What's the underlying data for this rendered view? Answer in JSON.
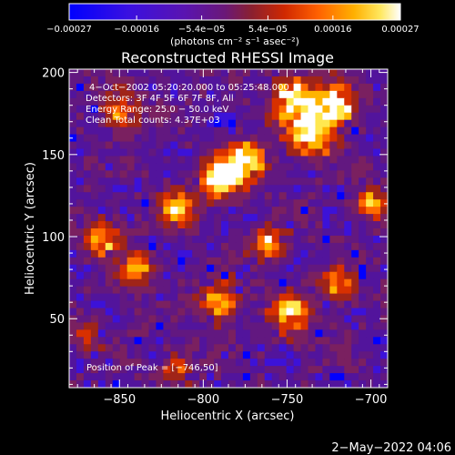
{
  "chart_data": {
    "type": "heatmap",
    "title": "Reconstructed RHESSI Image",
    "xlabel": "Heliocentric X (arcsec)",
    "ylabel": "Heliocentric Y (arcsec)",
    "xlim": [
      -880,
      -690
    ],
    "ylim": [
      8,
      202
    ],
    "x_ticks": [
      -850,
      -800,
      -750,
      -700
    ],
    "x_tick_labels": [
      "−850",
      "−800",
      "−750",
      "−700"
    ],
    "y_ticks": [
      50,
      100,
      150,
      200
    ],
    "y_tick_labels": [
      "50",
      "100",
      "150",
      "200"
    ],
    "colorbar": {
      "range": [
        -0.00027,
        0.00027
      ],
      "ticks": [
        -0.00027,
        -0.00016,
        -5.4e-05,
        5.4e-05,
        0.00016,
        0.00027
      ],
      "tick_labels": [
        "−0.00027",
        "−0.00016",
        "−5.4e−05",
        "5.4e−05",
        "0.00016",
        "0.00027"
      ],
      "unit_label": "(photons cm⁻² s⁻¹ asec⁻²)",
      "colormap": [
        "#0000ff",
        "#5a14c8",
        "#6a1e9a",
        "#7a2a6e",
        "#a02a1a",
        "#d83000",
        "#ff6a00",
        "#ffb400",
        "#ffe850",
        "#ffffff"
      ]
    },
    "annotations": [
      "4−Oct−2002 05:20:20.000 to 05:25:48.000",
      "Detectors: 3F 4F 5F 6F 7F 8F, All",
      "Energy Range: 25.0 − 50.0 keV",
      "Clean    Total counts: 4.37E+03"
    ],
    "peak_label": "Position of Peak = [−746,50]",
    "peak_position": [
      -746,
      50
    ],
    "bright_regions": [
      {
        "x": -745,
        "y": 185,
        "intensity": 1.0,
        "spread": 9
      },
      {
        "x": -720,
        "y": 180,
        "intensity": 0.95,
        "spread": 8
      },
      {
        "x": -735,
        "y": 162,
        "intensity": 0.85,
        "spread": 10
      },
      {
        "x": -790,
        "y": 135,
        "intensity": 0.95,
        "spread": 8
      },
      {
        "x": -775,
        "y": 145,
        "intensity": 0.85,
        "spread": 9
      },
      {
        "x": -815,
        "y": 118,
        "intensity": 0.75,
        "spread": 7
      },
      {
        "x": -860,
        "y": 100,
        "intensity": 0.8,
        "spread": 7
      },
      {
        "x": -840,
        "y": 80,
        "intensity": 0.7,
        "spread": 7
      },
      {
        "x": -790,
        "y": 60,
        "intensity": 0.75,
        "spread": 8
      },
      {
        "x": -748,
        "y": 52,
        "intensity": 0.8,
        "spread": 8
      },
      {
        "x": -760,
        "y": 95,
        "intensity": 0.7,
        "spread": 7
      },
      {
        "x": -700,
        "y": 120,
        "intensity": 0.7,
        "spread": 7
      },
      {
        "x": -720,
        "y": 70,
        "intensity": 0.65,
        "spread": 7
      },
      {
        "x": -850,
        "y": 175,
        "intensity": 0.6,
        "spread": 8
      },
      {
        "x": -815,
        "y": 20,
        "intensity": 0.55,
        "spread": 6
      },
      {
        "x": -870,
        "y": 40,
        "intensity": 0.45,
        "spread": 6
      }
    ]
  },
  "footer": {
    "date_stamp": "2−May−2022 04:06"
  }
}
